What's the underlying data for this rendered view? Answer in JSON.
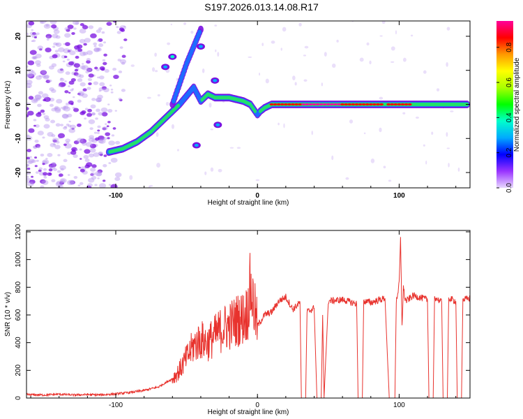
{
  "title": "S197.2026.013.14.08.R17",
  "colors": {
    "snr_line": "#e8322d",
    "track_outer": "#7a10e0",
    "track_mid": "#1e6cff",
    "track_inner": "#22e06a",
    "track_peak": "#e83020",
    "noise": "#b896f0",
    "plot_bg": "#ffffff"
  },
  "chart_data": [
    {
      "type": "heatmap",
      "xlabel": "Height of straight line (km)",
      "ylabel": "Frequency (Hz)",
      "xlim": [
        -163,
        150
      ],
      "ylim": [
        -24.5,
        24.5
      ],
      "x_ticks": [
        -100,
        0,
        100
      ],
      "y_ticks": [
        20,
        10,
        0,
        -10,
        -20
      ],
      "x_tick_labels": [
        "-100",
        "0",
        "100"
      ],
      "y_tick_labels": [
        "20",
        "10",
        "0",
        "-10",
        "-20"
      ],
      "grid": false,
      "colorbar": {
        "label": "Normalized spectral amplitude",
        "range": [
          0,
          0.95
        ],
        "ticks": [
          0.0,
          0.2,
          0.4,
          0.6,
          0.8
        ],
        "tick_labels": [
          "0.0",
          "0.2",
          "0.4",
          "0.6",
          "0.8"
        ],
        "colormap": [
          "#e8d8ff",
          "#9933ff",
          "#0000ff",
          "#00aaff",
          "#00ffcc",
          "#00ff00",
          "#aaff00",
          "#ffff00",
          "#ff9900",
          "#ff0000",
          "#ff0099"
        ]
      },
      "track": {
        "x": [
          -105,
          -95,
          -85,
          -75,
          -65,
          -55,
          -45,
          -40,
          -35,
          -30,
          -20,
          -10,
          -5,
          0,
          2,
          5,
          10,
          20,
          30,
          40,
          50,
          60,
          70,
          80,
          90,
          100,
          110,
          120,
          130,
          140,
          148
        ],
        "y": [
          -14,
          -13,
          -11,
          -8,
          -4,
          0,
          5,
          1,
          3,
          2,
          2,
          1,
          0,
          -3,
          -2,
          -1,
          0,
          0,
          0,
          0,
          0,
          0,
          0,
          0,
          0,
          0,
          0,
          0,
          0,
          0,
          0
        ],
        "amplitude": [
          0.35,
          0.4,
          0.45,
          0.45,
          0.4,
          0.35,
          0.3,
          0.35,
          0.4,
          0.45,
          0.55,
          0.7,
          0.6,
          0.3,
          0.4,
          0.6,
          0.85,
          0.9,
          0.9,
          0.95,
          0.95,
          0.9,
          0.9,
          0.85,
          0.8,
          0.85,
          0.8,
          0.75,
          0.7,
          0.65,
          0.6
        ]
      },
      "branch": {
        "x": [
          -60,
          -55,
          -50,
          -45,
          -40
        ],
        "y": [
          0,
          6,
          12,
          17,
          22
        ],
        "amplitude": [
          0.25,
          0.3,
          0.3,
          0.28,
          0.25
        ]
      },
      "blobs": [
        {
          "x": -60,
          "y": 14,
          "amplitude": 0.4
        },
        {
          "x": -65,
          "y": 11,
          "amplitude": 0.3
        },
        {
          "x": -40,
          "y": 17,
          "amplitude": 0.3
        },
        {
          "x": -30,
          "y": 7,
          "amplitude": 0.3
        },
        {
          "x": -28,
          "y": -6,
          "amplitude": 0.25
        },
        {
          "x": -43,
          "y": -12,
          "amplitude": 0.25
        }
      ]
    },
    {
      "type": "line",
      "xlabel": "Height of straight line (km)",
      "ylabel": "SNR (10 * v/v)",
      "xlim": [
        -163,
        150
      ],
      "ylim": [
        0,
        1210
      ],
      "x_ticks": [
        -100,
        0,
        100
      ],
      "y_ticks": [
        0,
        200,
        400,
        600,
        800,
        1000,
        1200
      ],
      "x_tick_labels": [
        "-100",
        "0",
        "100"
      ],
      "y_tick_labels": [
        "0",
        "200",
        "400",
        "600",
        "800",
        "1000",
        "1200"
      ],
      "grid": false,
      "series": [
        {
          "x": [
            -163,
            -150,
            -140,
            -130,
            -120,
            -110,
            -100,
            -90,
            -80,
            -70,
            -60,
            -55,
            -50,
            -45,
            -40,
            -35,
            -30,
            -25,
            -20,
            -15,
            -10,
            -7,
            -5,
            0,
            5,
            10,
            15,
            20,
            25,
            30,
            31,
            32,
            33,
            34,
            35,
            40,
            42,
            43,
            44,
            45,
            46,
            47,
            50,
            60,
            70,
            71,
            72,
            73,
            74,
            75,
            80,
            90,
            93,
            94,
            95,
            96,
            97,
            98,
            100,
            101,
            102,
            103,
            104,
            105,
            110,
            120,
            121,
            122,
            123,
            124,
            125,
            130,
            131,
            132,
            133,
            134,
            135,
            140,
            141,
            142,
            143,
            144,
            145,
            150
          ],
          "y": [
            25,
            22,
            28,
            22,
            25,
            23,
            30,
            40,
            55,
            80,
            140,
            200,
            290,
            380,
            420,
            400,
            450,
            500,
            520,
            560,
            580,
            620,
            800,
            520,
            600,
            620,
            700,
            730,
            640,
            690,
            0,
            0,
            0,
            0,
            620,
            650,
            0,
            0,
            0,
            0,
            600,
            0,
            700,
            710,
            680,
            0,
            0,
            0,
            0,
            700,
            690,
            720,
            0,
            0,
            0,
            0,
            0,
            700,
            820,
            1150,
            520,
            800,
            720,
            700,
            740,
            710,
            0,
            0,
            0,
            0,
            730,
            690,
            0,
            0,
            0,
            0,
            720,
            700,
            0,
            0,
            0,
            0,
            710,
            720
          ]
        }
      ]
    }
  ]
}
